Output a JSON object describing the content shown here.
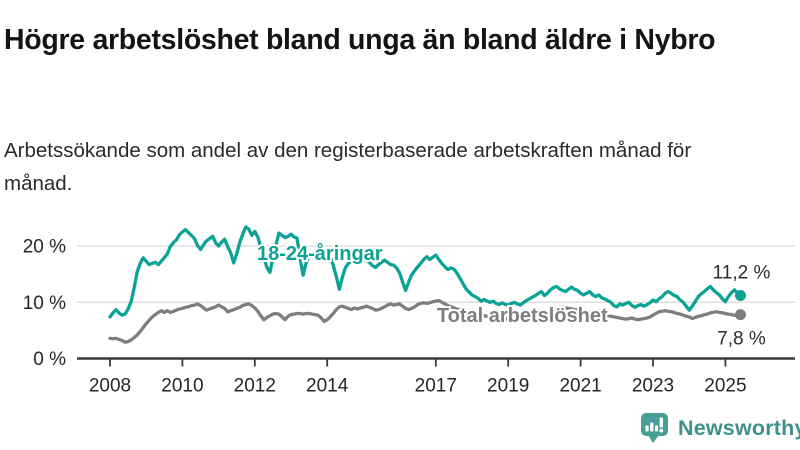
{
  "header": {
    "title": "Högre arbetslöshet bland unga än bland äldre i Nybro",
    "subtitle": "Arbetssökande som andel av den registerbaserade arbetskraften månad för månad."
  },
  "branding": {
    "name": "Newsworthy",
    "logo_icon": "bar-chart-speech-bubble",
    "color": "#3E918E",
    "icon_color": "#479E96"
  },
  "chart_data": {
    "type": "line",
    "title": "Högre arbetslöshet bland unga än bland äldre i Nybro",
    "subtitle": "Arbetssökande som andel av den registerbaserade arbetskraften månad för månad.",
    "unit": "%",
    "grid": "horizontal",
    "legend_position": "inline-labels",
    "xlim": [
      2007.1,
      2026.9
    ],
    "ylim": [
      0,
      25
    ],
    "y_ticks": [
      {
        "label": "0 %",
        "value": 0
      },
      {
        "label": "10 %",
        "value": 10
      },
      {
        "label": "20 %",
        "value": 20
      }
    ],
    "x_ticks": [
      {
        "label": "2008",
        "value": 2008
      },
      {
        "label": "2010",
        "value": 2010
      },
      {
        "label": "2012",
        "value": 2012
      },
      {
        "label": "2014",
        "value": 2014
      },
      {
        "label": "2017",
        "value": 2017
      },
      {
        "label": "2019",
        "value": 2019
      },
      {
        "label": "2021",
        "value": 2021
      },
      {
        "label": "2023",
        "value": 2023
      },
      {
        "label": "2025",
        "value": 2025
      }
    ],
    "series": [
      {
        "name": "18-24-åringar",
        "color": "#0BA396",
        "end_label": "11,2 %",
        "end_value": 11.2,
        "label_pos": {
          "t": 2012.06,
          "v": 17.5
        },
        "end_label_offset": -17,
        "values_by_year": {
          "2008": [
            7.4,
            8.1,
            8.7,
            8.1,
            7.7,
            7.9,
            8.8,
            10.1,
            12.5,
            15.4,
            16.9,
            17.9
          ],
          "2009": [
            17.3,
            16.7,
            16.9,
            17.1,
            16.7,
            17.3,
            17.9,
            18.6,
            19.9,
            20.6,
            21.1,
            22.0
          ],
          "2010": [
            22.5,
            22.9,
            22.4,
            21.9,
            21.3,
            20.1,
            19.4,
            20.2,
            20.9,
            21.3,
            21.7,
            20.6
          ],
          "2011": [
            20.0,
            20.7,
            21.2,
            19.9,
            18.8,
            17.0,
            18.6,
            20.6,
            22.1,
            23.4,
            23.0,
            21.9
          ],
          "2012": [
            22.6,
            21.6,
            19.8,
            17.9,
            16.2,
            15.3,
            17.9,
            20.2,
            22.3,
            21.9,
            21.5,
            21.7
          ],
          "2013": [
            22.1,
            21.6,
            21.4,
            17.8,
            14.8,
            17.0,
            18.1,
            18.5,
            18.1,
            18.9,
            19.1,
            18.4
          ],
          "2014": [
            18.9,
            18.1,
            16.6,
            14.6,
            12.3,
            14.4,
            16.1,
            16.9,
            17.3,
            17.0,
            16.7,
            17.0
          ],
          "2015": [
            17.4,
            17.6,
            17.1,
            16.5,
            16.2,
            16.7,
            17.1,
            17.5,
            17.1,
            16.7,
            16.6,
            16.1
          ],
          "2016": [
            15.2,
            13.6,
            12.1,
            13.6,
            14.9,
            15.6,
            16.3,
            16.9,
            17.6,
            18.1,
            17.6,
            18.0
          ],
          "2017": [
            18.4,
            17.6,
            16.9,
            16.3,
            15.8,
            16.1,
            15.9,
            15.2,
            14.3,
            13.3,
            12.4,
            11.8
          ],
          "2018": [
            11.3,
            11.0,
            10.7,
            10.2,
            10.5,
            10.2,
            10.0,
            10.2,
            9.8,
            9.6,
            9.9,
            9.6
          ],
          "2019": [
            9.5,
            9.8,
            10.0,
            9.7,
            9.5,
            9.9,
            10.3,
            10.6,
            10.9,
            11.2,
            11.6,
            11.9
          ],
          "2020": [
            11.2,
            11.6,
            12.2,
            12.6,
            12.8,
            12.4,
            12.1,
            11.9,
            12.3,
            12.7,
            12.3,
            12.1
          ],
          "2021": [
            11.6,
            11.3,
            11.6,
            11.9,
            11.3,
            11.0,
            11.3,
            10.8,
            10.6,
            10.3,
            10.0,
            9.4
          ],
          "2022": [
            9.2,
            9.7,
            9.5,
            9.8,
            10.0,
            9.4,
            9.1,
            9.4,
            9.6,
            9.3,
            9.6,
            9.9
          ],
          "2023": [
            10.4,
            10.1,
            10.6,
            11.0,
            11.6,
            11.9,
            11.6,
            11.2,
            11.0,
            10.4,
            10.0,
            9.3
          ],
          "2024": [
            8.6,
            9.3,
            10.1,
            11.0,
            11.5,
            11.9,
            12.4,
            12.8,
            12.2,
            11.7,
            11.3,
            10.6
          ],
          "2025": [
            10.1,
            11.0,
            11.7,
            12.2,
            11.6,
            11.2
          ]
        }
      },
      {
        "name": "Total arbetslöshet",
        "color": "#7E7E7E",
        "end_label": "7,8 %",
        "end_value": 7.8,
        "label_pos": {
          "t": 2017.03,
          "v": 6.5
        },
        "end_label_offset": 24,
        "values_by_year": {
          "2008": [
            3.6,
            3.5,
            3.6,
            3.4,
            3.2,
            2.9,
            3.0,
            3.3,
            3.7,
            4.2,
            4.8,
            5.5
          ],
          "2009": [
            6.2,
            6.8,
            7.4,
            7.8,
            8.2,
            8.5,
            8.2,
            8.5,
            8.2,
            8.4,
            8.6,
            8.8
          ],
          "2010": [
            8.9,
            9.1,
            9.2,
            9.4,
            9.5,
            9.7,
            9.4,
            9.0,
            8.6,
            8.8,
            9.0,
            9.2
          ],
          "2011": [
            9.5,
            9.2,
            8.9,
            8.3,
            8.5,
            8.7,
            8.9,
            9.1,
            9.4,
            9.6,
            9.7,
            9.4
          ],
          "2012": [
            9.0,
            8.4,
            7.6,
            6.9,
            7.3,
            7.6,
            7.9,
            8.0,
            7.9,
            7.4,
            6.9,
            7.5
          ],
          "2013": [
            7.8,
            7.9,
            8.0,
            8.0,
            7.9,
            8.0,
            8.0,
            7.9,
            7.8,
            7.7,
            7.2,
            6.6
          ],
          "2014": [
            6.9,
            7.4,
            8.0,
            8.7,
            9.2,
            9.3,
            9.1,
            8.9,
            8.7,
            9.0,
            8.8,
            9.0
          ],
          "2015": [
            9.1,
            9.3,
            9.1,
            8.9,
            8.6,
            8.7,
            8.9,
            9.2,
            9.5,
            9.7,
            9.5,
            9.6
          ],
          "2016": [
            9.7,
            9.3,
            8.9,
            8.7,
            8.9,
            9.2,
            9.6,
            9.8,
            9.9,
            9.8,
            9.9,
            10.1
          ],
          "2017": [
            10.2,
            10.3,
            10.0,
            9.7,
            9.4,
            9.2,
            9.0,
            8.8,
            8.6,
            8.4,
            8.2,
            8.1
          ],
          "2018": [
            8.0,
            7.9,
            7.8,
            7.7,
            7.6,
            7.5,
            7.4,
            7.3,
            7.2,
            7.2,
            7.1,
            7.0
          ],
          "2019": [
            7.0,
            7.0,
            7.1,
            7.1,
            7.2,
            7.2,
            7.3,
            7.3,
            7.4,
            7.4,
            7.5,
            7.6
          ],
          "2020": [
            7.7,
            7.9,
            8.2,
            8.5,
            8.8,
            9.0,
            9.1,
            9.0,
            8.9,
            8.8,
            8.7,
            8.6
          ],
          "2021": [
            8.5,
            8.4,
            8.3,
            8.2,
            8.1,
            8.0,
            7.9,
            7.8,
            7.7,
            7.6,
            7.5,
            7.4
          ],
          "2022": [
            7.3,
            7.2,
            7.1,
            7.0,
            7.1,
            7.2,
            7.0,
            6.9,
            7.0,
            7.1,
            7.2,
            7.4
          ],
          "2023": [
            7.7,
            8.0,
            8.3,
            8.4,
            8.5,
            8.4,
            8.3,
            8.2,
            8.0,
            7.9,
            7.7,
            7.5
          ],
          "2024": [
            7.4,
            7.1,
            7.3,
            7.5,
            7.6,
            7.8,
            7.9,
            8.1,
            8.2,
            8.3,
            8.2,
            8.1
          ],
          "2025": [
            8.0,
            7.9,
            7.8,
            7.7,
            7.6,
            7.8
          ]
        }
      }
    ]
  }
}
